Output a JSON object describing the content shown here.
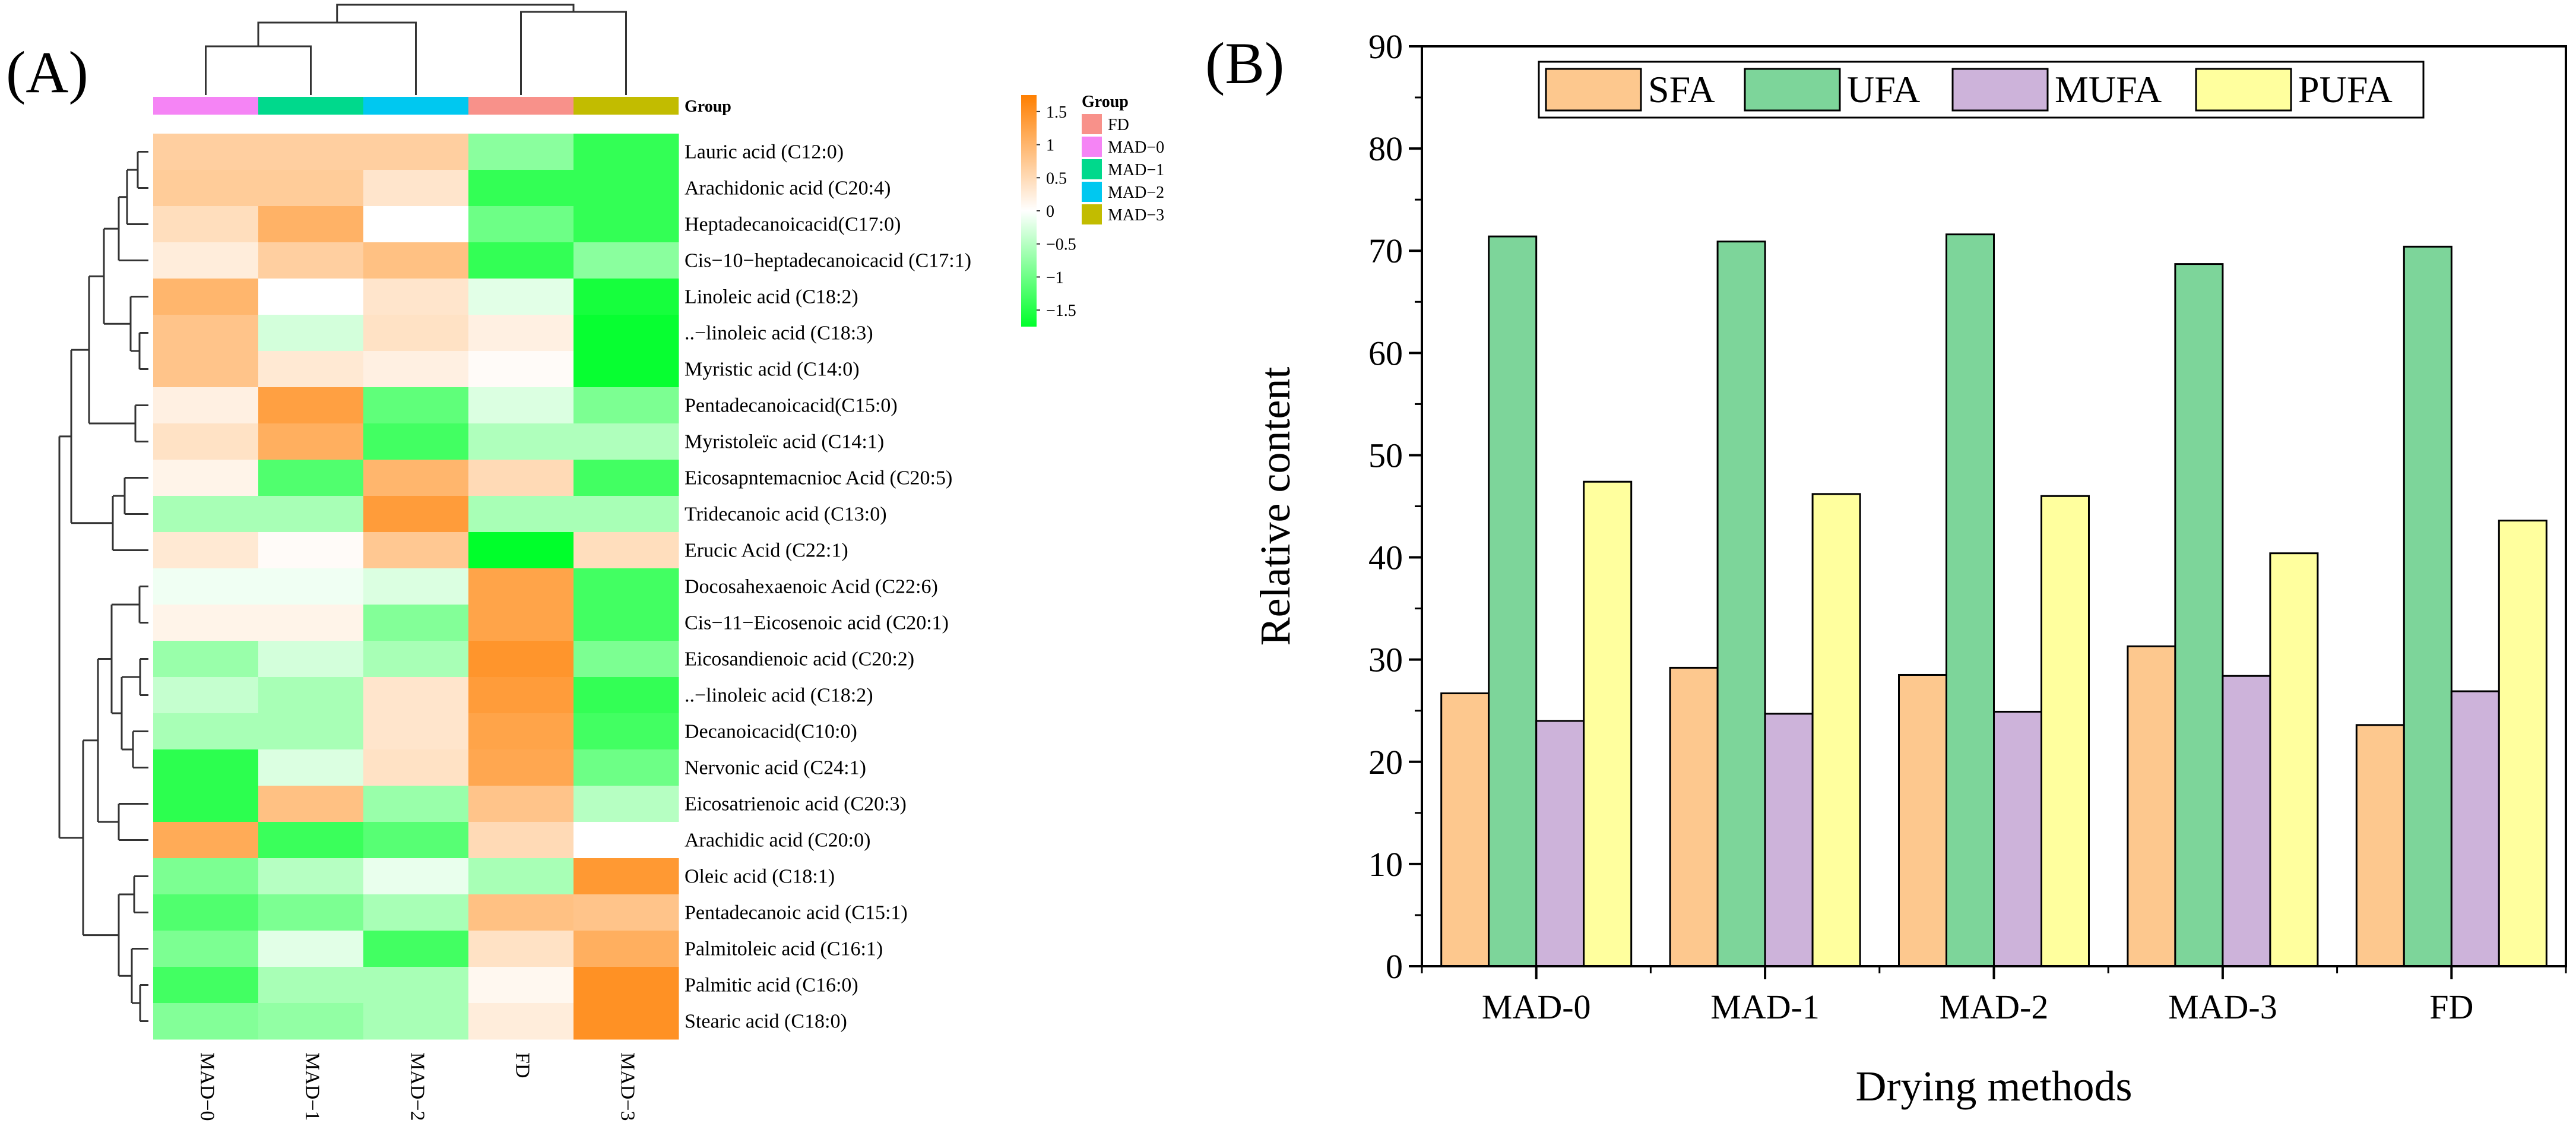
{
  "panels": {
    "a_label": "(A)",
    "b_label": "(B)"
  },
  "colors": {
    "SFA": "#fdc88e",
    "UFA": "#7dd59a",
    "MUFA": "#cdb3da",
    "PUFA": "#ffff9e",
    "heat_low": "#00ff2b",
    "heat_mid": "#ffffff",
    "heat_high": "#ff7f00",
    "group_FD": "#f8918a",
    "group_MAD-0": "#f584f5",
    "group_MAD-1": "#00d98c",
    "group_MAD-2": "#00c8f0",
    "group_MAD-3": "#c2bc00"
  },
  "chart_data": [
    {
      "type": "heatmap",
      "title": "",
      "columns": [
        "MAD−0",
        "MAD−1",
        "MAD−2",
        "FD",
        "MAD−3"
      ],
      "column_groups": [
        "MAD-0",
        "MAD-1",
        "MAD-2",
        "FD",
        "MAD-3"
      ],
      "group_bar_label": "Group",
      "rows": [
        "Lauric acid (C12:0)",
        "Arachidonic acid (C20:4)",
        "Heptadecanoicacid(C17:0)",
        "Cis−10−heptadecanoicacid (C17:1)",
        "Linoleic acid (C18:2)",
        "..−linoleic acid (C18:3)",
        "Myristic acid (C14:0)",
        "Pentadecanoicacid(C15:0)",
        "Myristoleïc acid (C14:1)",
        "Eicosapntemacnioc Acid (C20:5)",
        "Tridecanoic acid (C13:0)",
        "Erucic Acid (C22:1)",
        "Docosahexaenoic Acid (C22:6)",
        "Cis−11−Eicosenoic acid (C20:1)",
        "Eicosandienoic acid (C20:2)",
        "..−linoleic acid (C18:2)",
        "Decanoicacid(C10:0)",
        "Nervonic acid (C24:1)",
        "Eicosatrienoic acid (C20:3)",
        "Arachidic acid (C20:0)",
        "Oleic acid (C18:1)",
        "Pentadecanoic acid (C15:1)",
        "Palmitoleic acid (C16:1)",
        "Palmitic acid (C16:0)",
        "Stearic acid (C18:0)"
      ],
      "values": [
        [
          0.65,
          0.65,
          0.65,
          -0.8,
          -1.4
        ],
        [
          0.7,
          0.7,
          0.35,
          -1.4,
          -1.4
        ],
        [
          0.45,
          1.05,
          0.0,
          -1.0,
          -1.4
        ],
        [
          0.25,
          0.65,
          0.85,
          -1.4,
          -0.8
        ],
        [
          1.0,
          0.0,
          0.35,
          -0.2,
          -1.6
        ],
        [
          0.8,
          -0.3,
          0.4,
          0.2,
          -1.7
        ],
        [
          0.8,
          0.3,
          0.2,
          0.05,
          -1.7
        ],
        [
          0.2,
          1.3,
          -1.1,
          -0.25,
          -0.9
        ],
        [
          0.4,
          1.1,
          -1.3,
          -0.55,
          -0.55
        ],
        [
          0.15,
          -1.2,
          1.0,
          0.5,
          -1.3
        ],
        [
          -0.6,
          -0.6,
          1.35,
          -0.6,
          -0.6
        ],
        [
          0.3,
          0.05,
          0.75,
          -1.75,
          0.45
        ],
        [
          -0.1,
          -0.1,
          -0.25,
          1.25,
          -1.3
        ],
        [
          0.15,
          0.15,
          -0.85,
          1.25,
          -1.3
        ],
        [
          -0.7,
          -0.3,
          -0.6,
          1.45,
          -0.9
        ],
        [
          -0.4,
          -0.6,
          0.35,
          1.35,
          -1.4
        ],
        [
          -0.6,
          -0.6,
          0.35,
          1.25,
          -1.3
        ],
        [
          -1.45,
          -0.25,
          0.4,
          1.2,
          -1.0
        ],
        [
          -1.45,
          0.85,
          -0.7,
          0.8,
          -0.5
        ],
        [
          1.15,
          -1.35,
          -1.15,
          0.5,
          0.0
        ],
        [
          -0.9,
          -0.5,
          -0.15,
          -0.6,
          1.4
        ],
        [
          -1.2,
          -0.9,
          -0.6,
          0.85,
          0.8
        ],
        [
          -0.9,
          -0.2,
          -1.3,
          0.4,
          1.1
        ],
        [
          -1.3,
          -0.6,
          -0.6,
          0.1,
          1.5
        ],
        [
          -0.85,
          -0.75,
          -0.6,
          0.25,
          1.5
        ]
      ],
      "legend": {
        "color_scale_ticks": [
          "1.5",
          "1",
          "0.5",
          "0",
          "−0.5",
          "−1",
          "−1.5"
        ],
        "color_scale_values": [
          1.5,
          1,
          0.5,
          0,
          -0.5,
          -1,
          -1.5
        ],
        "range": [
          -1.75,
          1.75
        ],
        "group_title": "Group",
        "group_entries": [
          "FD",
          "MAD−0",
          "MAD−1",
          "MAD−2",
          "MAD−3"
        ],
        "group_keys": [
          "FD",
          "MAD-0",
          "MAD-1",
          "MAD-2",
          "MAD-3"
        ]
      }
    },
    {
      "type": "bar",
      "title": "",
      "xlabel": "Drying methods",
      "ylabel": "Relative content",
      "categories": [
        "MAD-0",
        "MAD-1",
        "MAD-2",
        "MAD-3",
        "FD"
      ],
      "series": [
        {
          "name": "SFA",
          "values": [
            26.7,
            29.2,
            28.5,
            31.3,
            23.6
          ]
        },
        {
          "name": "UFA",
          "values": [
            71.4,
            70.9,
            71.6,
            68.7,
            70.4
          ]
        },
        {
          "name": "MUFA",
          "values": [
            24.0,
            24.7,
            24.9,
            28.4,
            26.9
          ]
        },
        {
          "name": "PUFA",
          "values": [
            47.4,
            46.2,
            46.0,
            40.4,
            43.6
          ]
        }
      ],
      "ylim": [
        0,
        90
      ],
      "yticks": [
        0,
        10,
        20,
        30,
        40,
        50,
        60,
        70,
        80,
        90
      ],
      "legend_position": "top-center"
    }
  ]
}
